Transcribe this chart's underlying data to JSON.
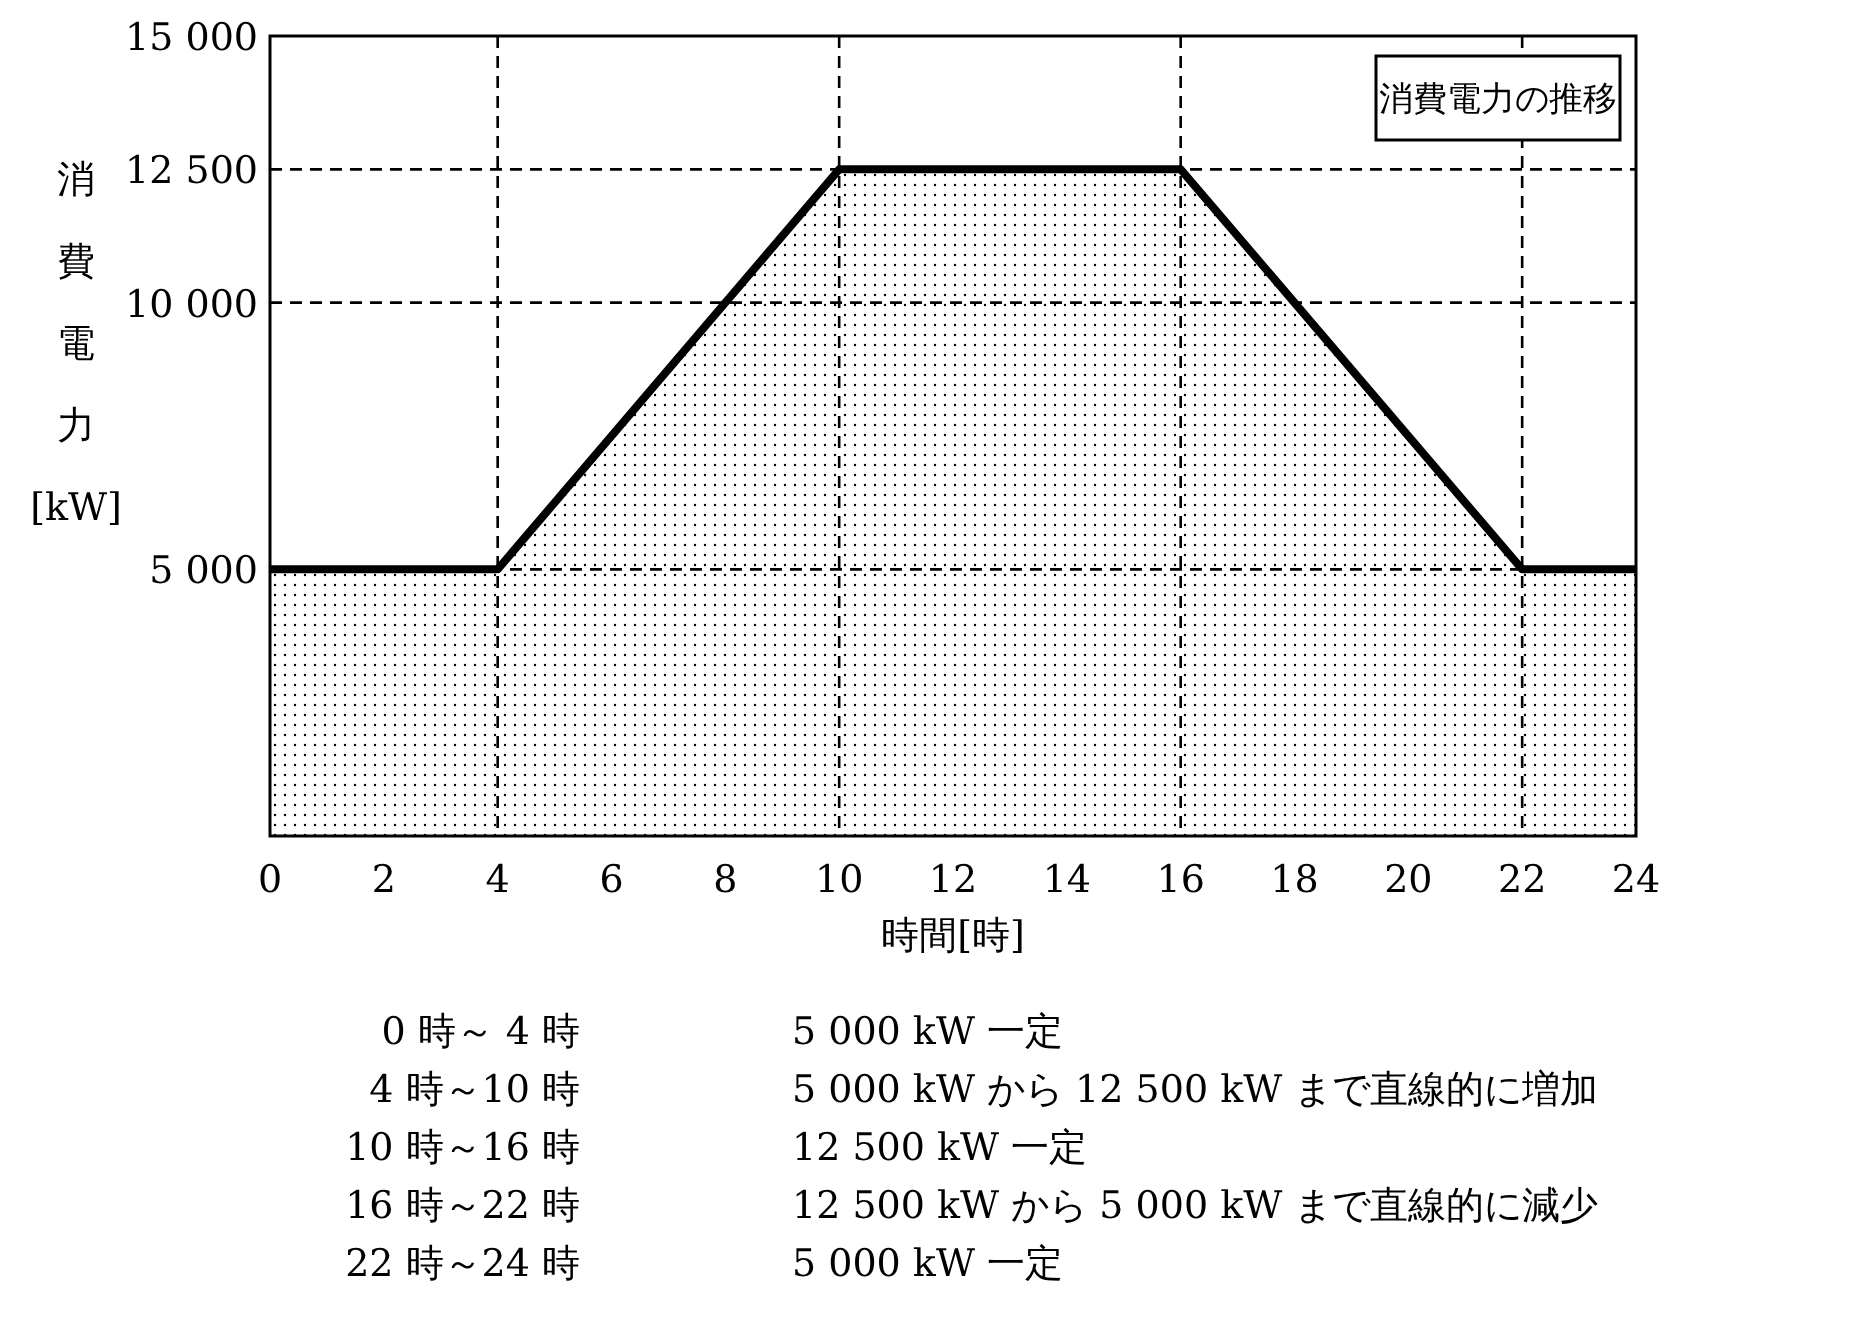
{
  "chart_data": {
    "type": "area",
    "xlabel": "時間[時]",
    "ylabel": "消費電力[kW]",
    "x": [
      0,
      4,
      10,
      16,
      22,
      24
    ],
    "series": [
      {
        "name": "消費電力の推移",
        "color": "#000000",
        "values": [
          5000,
          5000,
          12500,
          12500,
          5000,
          5000
        ]
      }
    ],
    "xlim": [
      0,
      24
    ],
    "xticks": [
      0,
      2,
      4,
      6,
      8,
      10,
      12,
      14,
      16,
      18,
      20,
      22,
      24
    ],
    "ylim": [
      0,
      15000
    ],
    "yticks": [
      {
        "value": 5000,
        "label": "5 000"
      },
      {
        "value": 10000,
        "label": "10 000"
      },
      {
        "value": 12500,
        "label": "12 500"
      },
      {
        "value": 15000,
        "label": "15 000"
      }
    ],
    "ref_lines": [
      {
        "axis": "x",
        "value": 4,
        "line_style": "dashed"
      },
      {
        "axis": "x",
        "value": 10,
        "line_style": "dashed"
      },
      {
        "axis": "x",
        "value": 16,
        "line_style": "dashed"
      },
      {
        "axis": "x",
        "value": 22,
        "line_style": "dashed"
      },
      {
        "axis": "y",
        "value": 5000,
        "line_style": "dashed"
      },
      {
        "axis": "y",
        "value": 10000,
        "line_style": "dashed"
      },
      {
        "axis": "y",
        "value": 12500,
        "line_style": "dashed"
      }
    ],
    "legend": "top right",
    "annotations": [
      "0 時～ 4 時",
      "5 000 kW 一定",
      "4 時～10 時",
      "5 000 kW から 12 500 kW まで直線的に増加",
      "10 時～16 時",
      "12 500 kW 一定",
      "16 時～22 時",
      "12 500 kW から 5 000 kW まで直線的に減少",
      "22 時～24 時",
      "5 000 kW 一定"
    ]
  }
}
